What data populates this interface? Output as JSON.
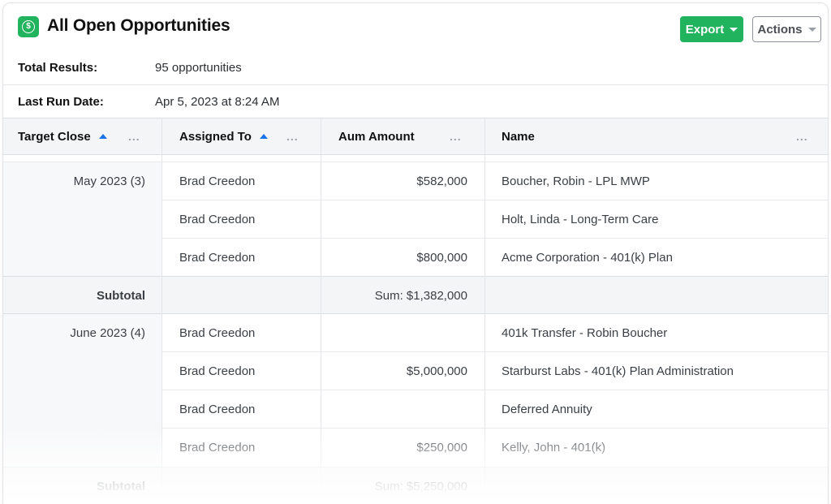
{
  "header": {
    "title": "All Open Opportunities",
    "app_icon": "dollar-icon",
    "export_label": "Export",
    "actions_label": "Actions",
    "accent_color": "#22b35e"
  },
  "meta": {
    "total_results_label": "Total Results:",
    "total_results_value": "95 opportunities",
    "last_run_label": "Last Run Date:",
    "last_run_value": "Apr 5, 2023 at 8:24 AM"
  },
  "columns": {
    "target_close": "Target Close",
    "assigned_to": "Assigned To",
    "aum_amount": "Aum Amount",
    "name": "Name",
    "more_icon": "..."
  },
  "groups": [
    {
      "label": "May 2023 (3)",
      "rows": [
        {
          "assigned": "Brad Creedon",
          "amount": "$582,000",
          "name": "Boucher, Robin - LPL MWP"
        },
        {
          "assigned": "Brad Creedon",
          "amount": "",
          "name": "Holt, Linda - Long-Term Care"
        },
        {
          "assigned": "Brad Creedon",
          "amount": "$800,000",
          "name": "Acme Corporation - 401(k) Plan"
        }
      ],
      "subtotal_label": "Subtotal",
      "subtotal_value": "Sum: $1,382,000"
    },
    {
      "label": "June 2023 (4)",
      "rows": [
        {
          "assigned": "Brad Creedon",
          "amount": "",
          "name": "401k Transfer - Robin Boucher"
        },
        {
          "assigned": "Brad Creedon",
          "amount": "$5,000,000",
          "name": "Starburst Labs - 401(k) Plan Administration"
        },
        {
          "assigned": "Brad Creedon",
          "amount": "",
          "name": "Deferred Annuity"
        },
        {
          "assigned": "Brad Creedon",
          "amount": "$250,000",
          "name": "Kelly, John - 401(k)"
        }
      ],
      "subtotal_label": "Subtotal",
      "subtotal_value": "Sum: $5,250,000"
    }
  ]
}
